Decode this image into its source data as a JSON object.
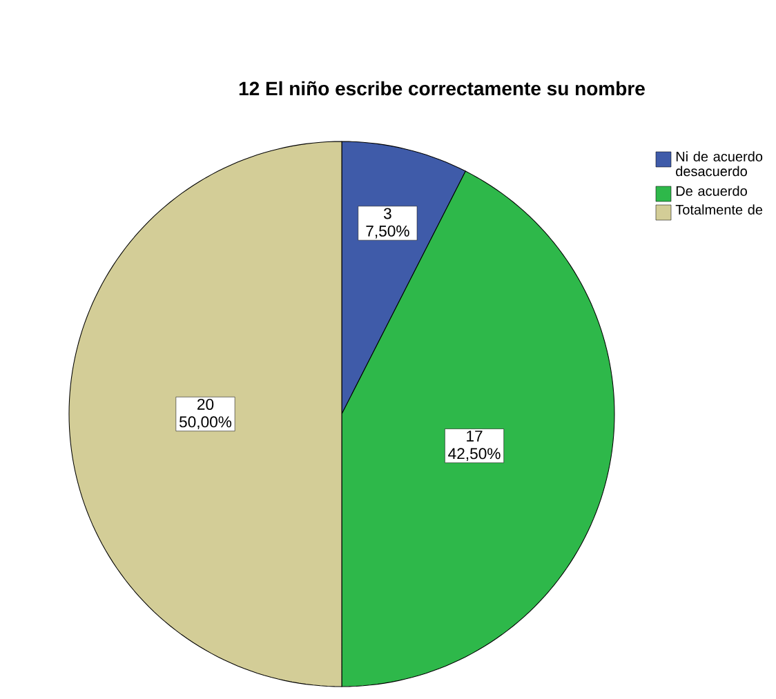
{
  "chart_data": {
    "type": "pie",
    "title": "12 El niño escribe correctamente su nombre",
    "categories": [
      "Ni de acuerdo desacuerdo",
      "De acuerdo",
      "Totalmente de"
    ],
    "values": [
      3,
      17,
      20
    ],
    "colors": [
      "#3f5ba9",
      "#2eb84a",
      "#d3cd97"
    ],
    "value_labels": [
      "3 7,50%",
      "17 42,50%",
      "20 50,00%"
    ],
    "legend": "top right"
  }
}
